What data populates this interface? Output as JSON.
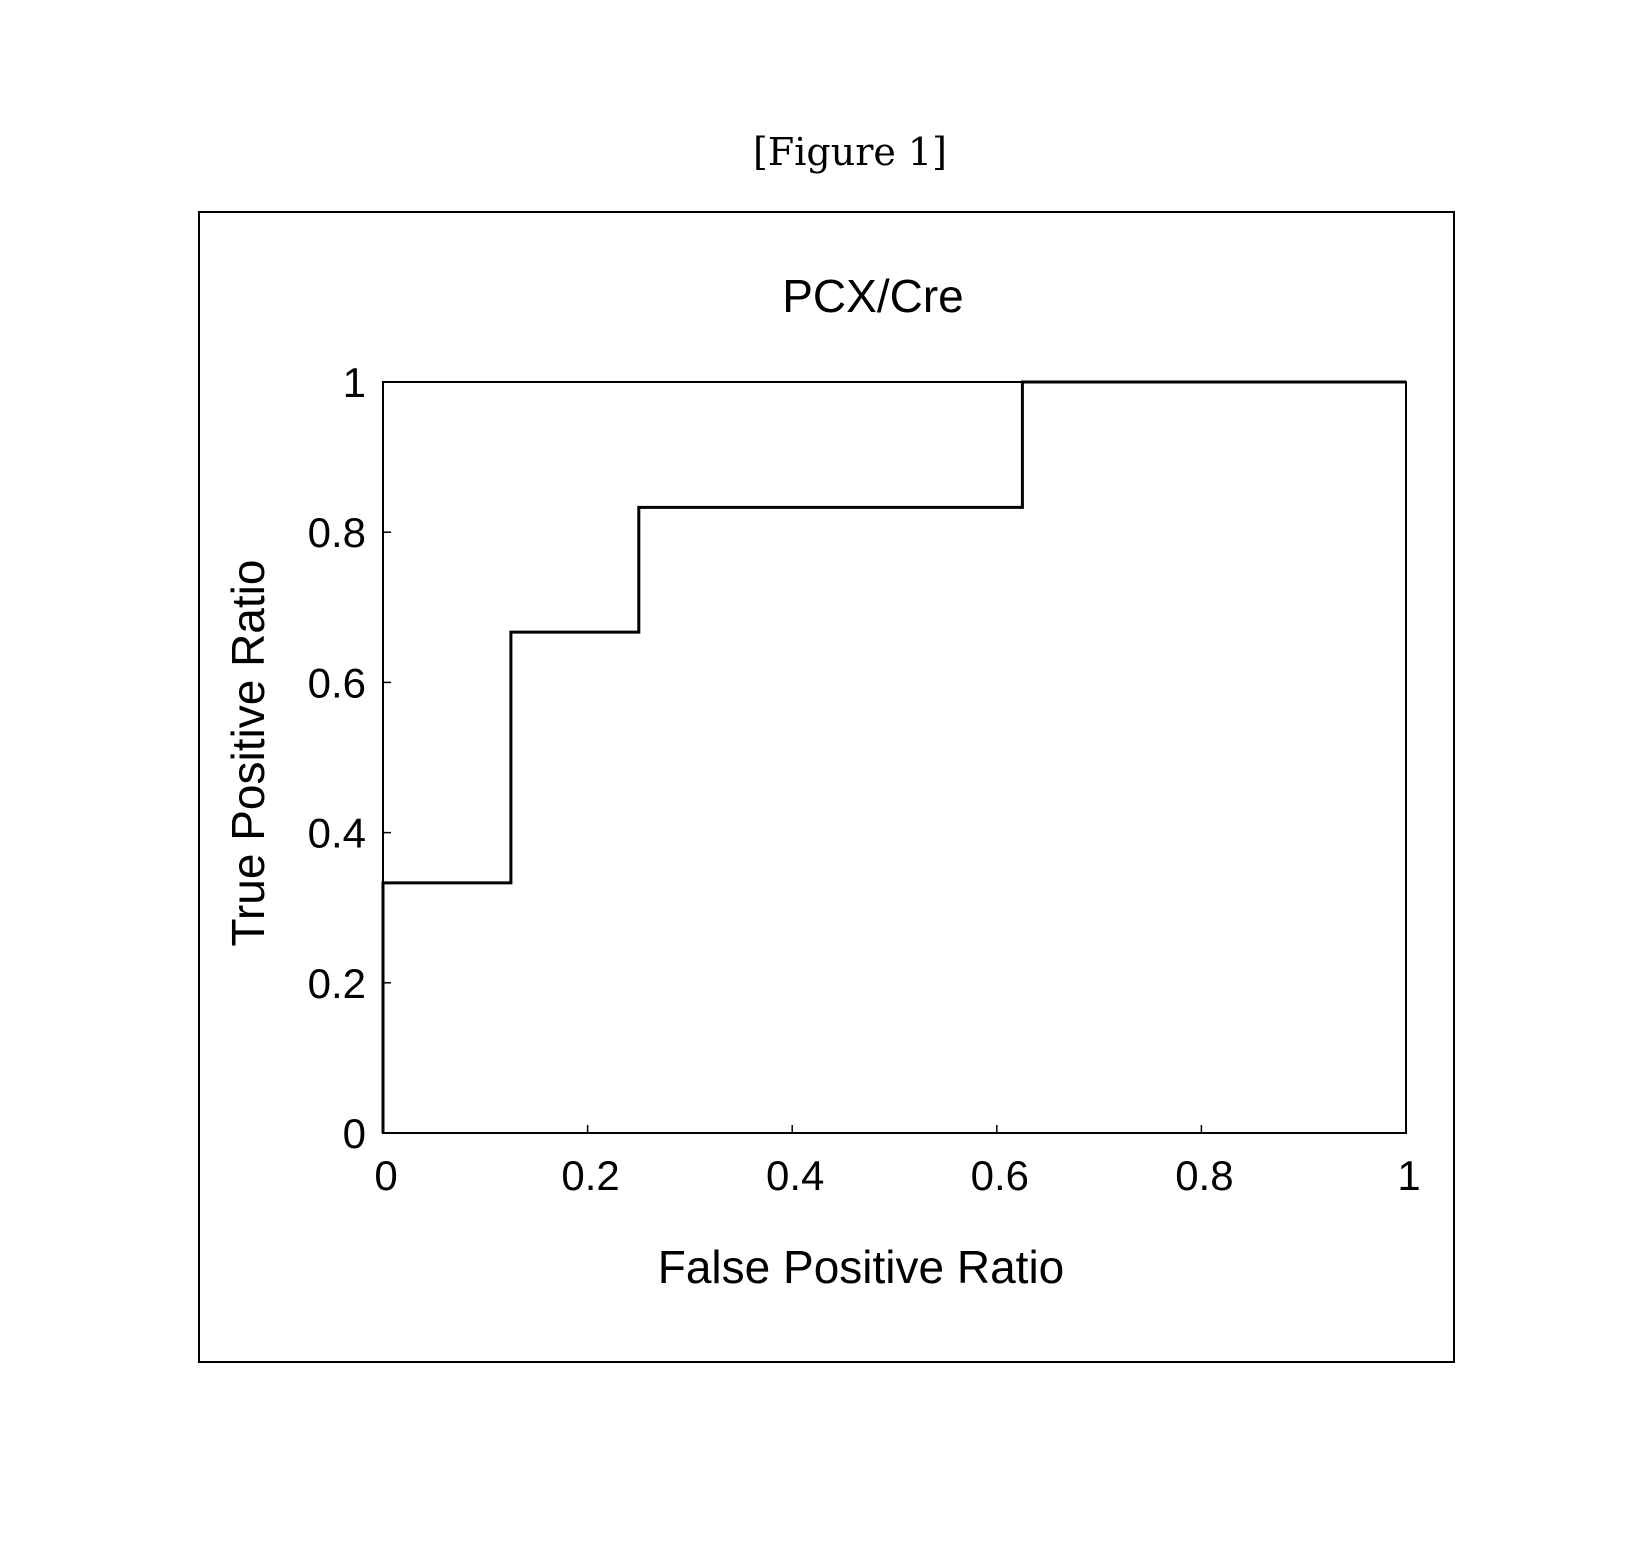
{
  "figure_label": "[Figure 1]",
  "chart_data": {
    "type": "line",
    "title": "PCX/Cre",
    "xlabel": "False Positive Ratio",
    "ylabel": "True Positive Ratio",
    "xlim": [
      0,
      1
    ],
    "ylim": [
      0,
      1
    ],
    "xticks": [
      {
        "value": 0,
        "label": "0"
      },
      {
        "value": 0.2,
        "label": "0.2"
      },
      {
        "value": 0.4,
        "label": "0.4"
      },
      {
        "value": 0.6,
        "label": "0.6"
      },
      {
        "value": 0.8,
        "label": "0.8"
      },
      {
        "value": 1,
        "label": "1"
      }
    ],
    "yticks": [
      {
        "value": 0,
        "label": "0"
      },
      {
        "value": 0.2,
        "label": "0.2"
      },
      {
        "value": 0.4,
        "label": "0.4"
      },
      {
        "value": 0.6,
        "label": "0.6"
      },
      {
        "value": 0.8,
        "label": "0.8"
      },
      {
        "value": 1,
        "label": "1"
      }
    ],
    "grid": false,
    "series": [
      {
        "color": "#000000",
        "x": [
          0,
          0,
          0.125,
          0.125,
          0.25,
          0.25,
          0.625,
          0.625,
          1
        ],
        "y": [
          0,
          0.333,
          0.333,
          0.667,
          0.667,
          0.833,
          0.833,
          1,
          1
        ]
      }
    ]
  }
}
